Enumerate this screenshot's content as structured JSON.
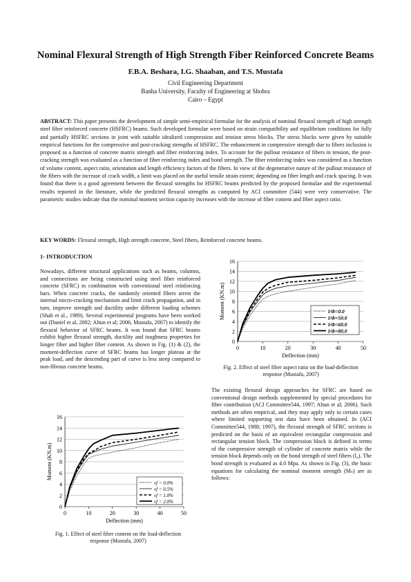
{
  "paper": {
    "title": "Nominal Flexural Strength of High Strength Fiber Reinforced Concrete Beams",
    "authors": "F.B.A. Beshara, I.G. Shaaban, and T.S. Mustafa",
    "affiliation": [
      "Civil Engineering Department",
      "Banha University, Faculty of Engineering at Shobra",
      "Cairo – Egypt"
    ],
    "abstract_label": "ABSTRACT:",
    "abstract_text": "This paper presents the development of simple semi-empirical formulae for the analysis of nominal flexural strength of high strength steel fiber reinforced concrete (HSFRC) beams. Such developed formulae were based on strain compatibility and equilibrium conditions for fully and partially HSFRC sections in joint with suitable idealized compression and tension stress blocks. The stress blocks were given by suitable empirical functions for the compressive and post-cracking strengths of HSFRC. The enhancement in compressive strength due to fibers inclusion is proposed as a function of concrete matrix strength and fiber reinforcing index. To account for the pullout resistance of fibers in tension, the post-cracking strength was evaluated as a function of fiber reinforcing index and bond strength. The fiber reinforcing index was considered as a function of volume content, aspect ratio, orientation and length efficiency factors of the fibers. In view of the degenerative nature of the pullout resistance of the fibers with the increase of crack width, a limit was placed on the useful tensile strain extent; depending on fiber length and crack spacing. It was found that there is a good agreement between the flexural strengths for HSFRC beams predicted by the proposed formulae and the experimental results reported in the literature, while the predicted flexural strengths as computed by ACI committee (544) were very conservative. The parametric studies indicate that the nominal moment section capacity increases with the increase of fiber content and fiber aspect ratio.",
    "keywords_label": "KEY WORDS:",
    "keywords_text": "Flexural strength, High strength concrete, Steel fibers, Reinforced concrete beams.",
    "section_heading": "1- INTRODUCTION",
    "intro_left": "Nowadays, different structural applications such as beams, columns, and connections are being constructed using steel fiber reinforced concrete (SFRC) in combination with conventional steel reinforcing bars. When concrete cracks, the randomly oriented fibers arrest the internal micro-cracking mechanism and limit crack propagation, and in turn, improve strength and ductility under different loading schemes (Shah et al., 1989). Several experimental programs have been worked out (Daniel et al, 2002; Altun et al; 2006, Mustafa, 2007) to identify the flexural behavior of SFRC beams. It was found that SFRC beams exhibit higher flexural strength, ductility and toughness properties for longer fiber and higher fiber content. As shown in Fig. (1) & (2), the moment-deflection curve of SFRC beams has longer plateau at the peak load, and the descending part of curve is less steep compared to non-fibrous concrete beams.",
    "intro_right": "The existing flexural design approaches for SFRC are based on conventional design methods supplemented by special procedures for fiber contribution (ACI Committee544, 1997; Altun et al; 2006). Such methods are often empirical, and they may apply only to certain cases where limited supporting test data have been obtained. In (ACI Committee544, 1988; 1997), the flexural strength of SFRC sections is predicted on the basis of an equivalent rectangular compression and rectangular tension block. The compression block is defined in terms of the compressive strength of cylinder of concrete matrix while the tension block depends only on the bond strength of steel fibers (l₀). The bond strength is evaluated as 4.0 Mpa. As shown in Fig. (3), the basic equations for calculating the nominal moment strength (Mₙ) are as follows:",
    "fig1_caption": "Fig. 1.  Effect of steel fiber content on the load-deflection response (Mustafa, 2007)",
    "fig2_caption": "Fig. 2.  Effect of steel fiber aspect ratio on the load-deflection response (Mustafa, 2007)"
  },
  "chart_data": [
    {
      "type": "line",
      "xlabel": "Deflection (mm)",
      "ylabel": "Moment (KN.m)",
      "xlim": [
        0,
        50
      ],
      "ylim": [
        0,
        16
      ],
      "xticks": [
        0,
        10,
        20,
        30,
        40,
        50
      ],
      "yticks": [
        0,
        2,
        4,
        6,
        8,
        10,
        12,
        14,
        16
      ],
      "legend_position": "bottom-right",
      "series": [
        {
          "name": "vf = 0.0%",
          "style": "dotted",
          "x": [
            0,
            2,
            5,
            8,
            10,
            12,
            15,
            20,
            30,
            40,
            48
          ],
          "y": [
            0,
            2.8,
            5.5,
            7.6,
            8.6,
            9.0,
            9.3,
            9.7,
            10.5,
            11.4,
            12.0
          ]
        },
        {
          "name": "vf = 0.5%",
          "style": "solid-thin",
          "x": [
            0,
            2,
            5,
            8,
            10,
            12,
            15,
            20,
            30,
            40,
            48
          ],
          "y": [
            0,
            3.2,
            6.2,
            8.2,
            9.3,
            9.7,
            10.2,
            10.8,
            11.5,
            12.2,
            12.7
          ]
        },
        {
          "name": "vf = 1.0%",
          "style": "dashed",
          "x": [
            0,
            2,
            5,
            8,
            10,
            12,
            15,
            20,
            30,
            40,
            48
          ],
          "y": [
            0,
            3.3,
            6.4,
            8.5,
            9.5,
            9.9,
            10.7,
            11.4,
            12.0,
            12.7,
            13.3
          ]
        },
        {
          "name": "vf = 2.0%",
          "style": "solid-thick",
          "x": [
            0,
            2,
            5,
            8,
            10,
            12,
            15,
            20,
            30,
            40,
            48
          ],
          "y": [
            0,
            3.5,
            6.8,
            9.0,
            10.3,
            11.2,
            11.8,
            12.7,
            13.1,
            13.6,
            14.0
          ]
        }
      ]
    },
    {
      "type": "line",
      "xlabel": "Deflection (mm)",
      "ylabel": "Moment (KN.m)",
      "xlim": [
        0,
        50
      ],
      "ylim": [
        0,
        16
      ],
      "xticks": [
        0,
        10,
        20,
        30,
        40,
        50
      ],
      "yticks": [
        0,
        2,
        4,
        6,
        8,
        10,
        12,
        14,
        16
      ],
      "legend_position": "bottom-right",
      "series": [
        {
          "name": "l/Φ=0.0",
          "style": "dotted",
          "x": [
            0,
            2,
            5,
            8,
            10,
            12,
            15,
            20,
            30,
            40,
            47
          ],
          "y": [
            0,
            2.6,
            5.2,
            7.3,
            8.4,
            9.0,
            9.5,
            10.0,
            10.8,
            11.5,
            12.2
          ]
        },
        {
          "name": "l/Φ=50.0",
          "style": "solid-thin",
          "x": [
            0,
            2,
            5,
            8,
            10,
            12,
            15,
            20,
            30,
            40,
            47
          ],
          "y": [
            0,
            3.0,
            5.9,
            8.0,
            9.3,
            10.0,
            10.6,
            11.1,
            11.6,
            12.2,
            12.8
          ]
        },
        {
          "name": "l/Φ=60.0",
          "style": "dashed",
          "x": [
            0,
            2,
            5,
            8,
            10,
            12,
            15,
            20,
            30,
            40,
            47
          ],
          "y": [
            0,
            3.2,
            6.3,
            8.5,
            9.8,
            10.6,
            11.2,
            11.8,
            12.2,
            12.7,
            13.2
          ]
        },
        {
          "name": "l/Φ=80.0",
          "style": "solid-thick",
          "x": [
            0,
            2,
            5,
            8,
            10,
            12,
            15,
            20,
            30,
            40,
            47
          ],
          "y": [
            0,
            3.5,
            6.8,
            9.2,
            10.6,
            11.6,
            12.3,
            12.8,
            13.2,
            13.5,
            13.8
          ]
        }
      ]
    }
  ]
}
